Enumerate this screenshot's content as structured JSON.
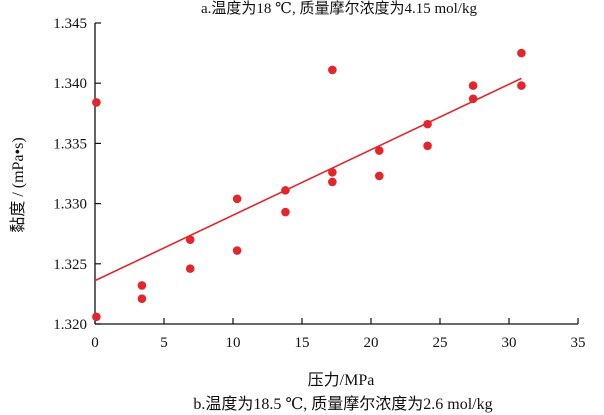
{
  "chart_data": {
    "type": "scatter",
    "top_caption": "a.温度为18 ℃, 质量摩尔浓度为4.15 mol/kg",
    "caption": "b.温度为18.5 ℃, 质量摩尔浓度为2.6 mol/kg",
    "xlabel": "压力/MPa",
    "ylabel": "黏度 / (mPa•s)",
    "xlim": [
      0,
      35
    ],
    "ylim": [
      1.32,
      1.345
    ],
    "xticks": [
      "0",
      "5",
      "10",
      "15",
      "20",
      "25",
      "30",
      "35"
    ],
    "yticks": [
      "1.320",
      "1.325",
      "1.330",
      "1.335",
      "1.340",
      "1.345"
    ],
    "grid": false,
    "colors": {
      "points": "#e3262b",
      "fit_line": "#e3262b",
      "axis": "#111111"
    },
    "series": [
      {
        "points": [
          [
            0.1,
            1.3384
          ],
          [
            0.1,
            1.3206
          ],
          [
            3.4,
            1.3232
          ],
          [
            3.4,
            1.3221
          ],
          [
            6.9,
            1.327
          ],
          [
            6.9,
            1.3246
          ],
          [
            10.3,
            1.3304
          ],
          [
            10.3,
            1.3261
          ],
          [
            13.8,
            1.3311
          ],
          [
            13.8,
            1.3293
          ],
          [
            17.2,
            1.3411
          ],
          [
            17.2,
            1.3326
          ],
          [
            17.2,
            1.3318
          ],
          [
            20.6,
            1.3344
          ],
          [
            20.6,
            1.3323
          ],
          [
            24.1,
            1.3366
          ],
          [
            24.1,
            1.3348
          ],
          [
            27.4,
            1.3398
          ],
          [
            27.4,
            1.3387
          ],
          [
            30.9,
            1.3425
          ],
          [
            30.9,
            1.3398
          ]
        ]
      }
    ],
    "fit_line": [
      [
        0,
        1.3236
      ],
      [
        30.9,
        1.3404
      ]
    ]
  }
}
